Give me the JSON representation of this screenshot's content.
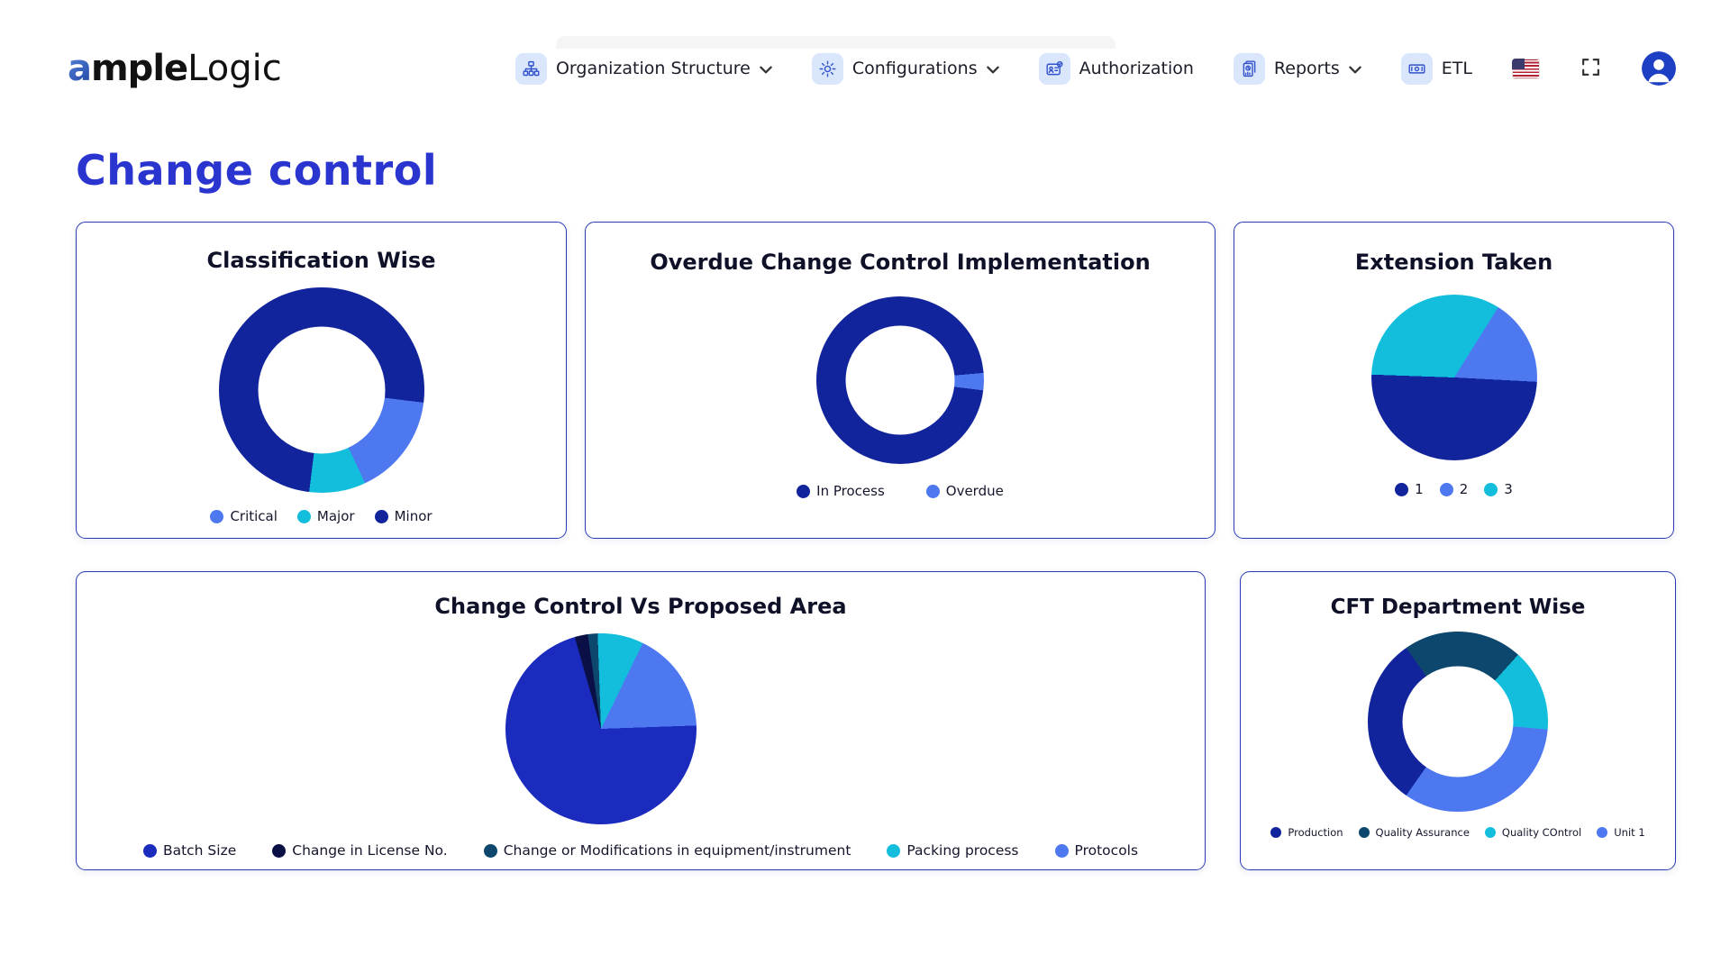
{
  "brand": {
    "name_a": "a",
    "name_bold": "mple",
    "name_light": "Logic"
  },
  "nav": {
    "items": [
      {
        "id": "organization-structure",
        "label": "Organization Structure",
        "icon": "org-chart-icon",
        "has_chevron": true
      },
      {
        "id": "configurations",
        "label": "Configurations",
        "icon": "gear-icon",
        "has_chevron": true
      },
      {
        "id": "authorization",
        "label": "Authorization",
        "icon": "id-badge-icon",
        "has_chevron": false
      },
      {
        "id": "reports",
        "label": "Reports",
        "icon": "report-icon",
        "has_chevron": true
      },
      {
        "id": "etl",
        "label": "ETL",
        "icon": "banknote-icon",
        "has_chevron": false
      }
    ],
    "flag": "us-flag-icon",
    "fullscreen": "fullscreen-icon",
    "avatar": "user-avatar"
  },
  "page": {
    "title": "Change control"
  },
  "colors": {
    "accent_blue": "#2a35cf",
    "navy": "#12249c",
    "royal": "#1a2bbe",
    "light_blue": "#4d78f0",
    "cyan": "#13bedd",
    "dark_navy": "#0a0f45",
    "petrol": "#0d476e",
    "card_border": "#2a3bb7",
    "nav_icon_bg": "#d9e6fc"
  },
  "chart_data": [
    {
      "id": "classification-wise",
      "type": "donut",
      "title": "Classification Wise",
      "labels": [
        "Critical",
        "Major",
        "Minor"
      ],
      "values_pct": [
        16,
        9,
        75
      ],
      "colors": [
        "#4d78f0",
        "#13bedd",
        "#12249c"
      ],
      "segments": [
        {
          "color": "#12249c",
          "start": 0,
          "end": 97
        },
        {
          "color": "#4d78f0",
          "start": 97,
          "end": 155
        },
        {
          "color": "#13bedd",
          "start": 155,
          "end": 187
        },
        {
          "color": "#12249c",
          "start": 187,
          "end": 360
        }
      ],
      "legend_position": "bottom"
    },
    {
      "id": "overdue-implementation",
      "type": "donut",
      "title": "Overdue Change Control Implementation",
      "labels": [
        "In Process",
        "Overdue"
      ],
      "values_pct": [
        97,
        3
      ],
      "colors": [
        "#12249c",
        "#4d78f0"
      ],
      "segments": [
        {
          "color": "#12249c",
          "start": 0,
          "end": 85
        },
        {
          "color": "#4d78f0",
          "start": 85,
          "end": 97
        },
        {
          "color": "#12249c",
          "start": 97,
          "end": 360
        }
      ],
      "legend_position": "bottom"
    },
    {
      "id": "extension-taken",
      "type": "pie",
      "title": "Extension Taken",
      "labels": [
        "1",
        "2",
        "3"
      ],
      "values_pct": [
        50,
        17,
        33
      ],
      "colors": [
        "#12249c",
        "#4d78f0",
        "#13bedd"
      ],
      "segments": [
        {
          "color": "#13bedd",
          "start": 0,
          "end": 32
        },
        {
          "color": "#4d78f0",
          "start": 32,
          "end": 93
        },
        {
          "color": "#12249c",
          "start": 93,
          "end": 272
        },
        {
          "color": "#13bedd",
          "start": 272,
          "end": 360
        }
      ],
      "legend_position": "bottom"
    },
    {
      "id": "change-vs-proposed-area",
      "type": "pie",
      "title": "Change Control Vs Proposed Area",
      "labels": [
        "Batch Size",
        "Change in License No.",
        "Change or Modifications in equipment/instrument",
        "Packing process",
        "Protocols"
      ],
      "values_pct": [
        71,
        2,
        2,
        8,
        17
      ],
      "colors": [
        "#1a2bbe",
        "#0a0f45",
        "#0d476e",
        "#13bedd",
        "#4d78f0"
      ],
      "segments": [
        {
          "color": "#13bedd",
          "start": 0,
          "end": 26
        },
        {
          "color": "#4d78f0",
          "start": 26,
          "end": 88
        },
        {
          "color": "#1a2bbe",
          "start": 88,
          "end": 344
        },
        {
          "color": "#0a0f45",
          "start": 344,
          "end": 352
        },
        {
          "color": "#0d476e",
          "start": 352,
          "end": 358
        },
        {
          "color": "#13bedd",
          "start": 358,
          "end": 360
        }
      ],
      "legend_position": "bottom"
    },
    {
      "id": "cft-department-wise",
      "type": "donut",
      "title": "CFT Department Wise",
      "labels": [
        "Production",
        "Quality Assurance",
        "Quality COntrol",
        "Unit 1"
      ],
      "values_pct": [
        31,
        21,
        15,
        33
      ],
      "colors": [
        "#12249c",
        "#0d476e",
        "#13bedd",
        "#4d78f0"
      ],
      "segments": [
        {
          "color": "#0d476e",
          "start": 0,
          "end": 42
        },
        {
          "color": "#13bedd",
          "start": 42,
          "end": 95
        },
        {
          "color": "#4d78f0",
          "start": 95,
          "end": 215
        },
        {
          "color": "#12249c",
          "start": 215,
          "end": 325
        },
        {
          "color": "#0d476e",
          "start": 325,
          "end": 360
        }
      ],
      "legend_position": "bottom"
    }
  ]
}
